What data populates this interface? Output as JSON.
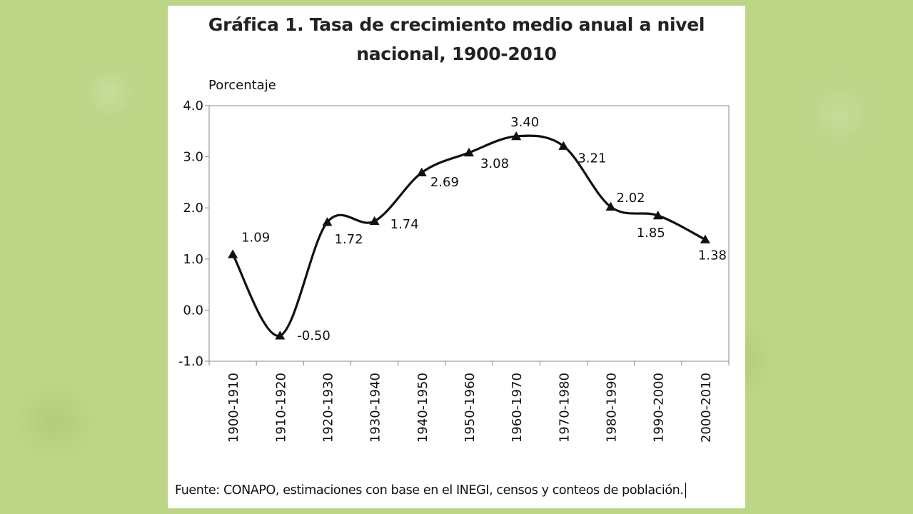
{
  "colors": {
    "background": "#bcd587",
    "card": "#ffffff",
    "line": "#111111"
  },
  "chart_data": {
    "type": "line",
    "title_line1": "Gráfica 1. Tasa de crecimiento medio anual a nivel",
    "title_line2": "nacional, 1900-2010",
    "ylabel": "Porcentaje",
    "xlabel": "",
    "ylim": [
      -1.0,
      4.0
    ],
    "yticks": [
      "4.0",
      "3.0",
      "2.0",
      "1.0",
      "0.0",
      "-1.0"
    ],
    "ytick_values": [
      4,
      3,
      2,
      1,
      0,
      -1
    ],
    "grid": false,
    "marker": "triangle",
    "categories": [
      "1900-1910",
      "1910-1920",
      "1920-1930",
      "1930-1940",
      "1940-1950",
      "1950-1960",
      "1960-1970",
      "1970-1980",
      "1980-1990",
      "1990-2000",
      "2000-2010"
    ],
    "values": [
      1.09,
      -0.5,
      1.72,
      1.74,
      2.69,
      3.08,
      3.4,
      3.21,
      2.02,
      1.85,
      1.38
    ],
    "value_labels": [
      "1.09",
      "-0.50",
      "1.72",
      "1.74",
      "2.69",
      "3.08",
      "3.40",
      "3.21",
      "2.02",
      "1.85",
      "1.38"
    ],
    "source": "Fuente: CONAPO, estimaciones con base en el INEGI, censos y conteos de población."
  }
}
